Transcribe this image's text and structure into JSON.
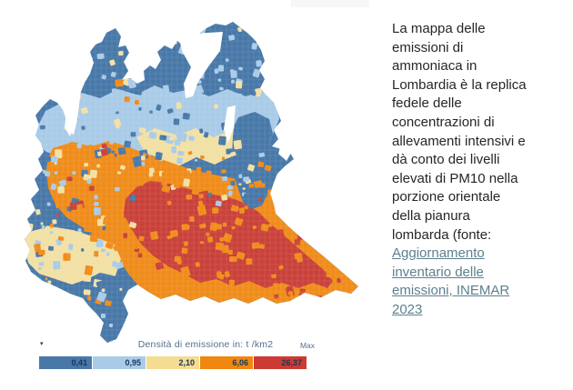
{
  "legend": {
    "title": "Densità di emissione in: t /km2",
    "max_label": "Max",
    "marker": "▾",
    "classes": [
      {
        "value": "0,41",
        "color": "#4878a8"
      },
      {
        "value": "0,95",
        "color": "#a9cbe8"
      },
      {
        "value": "2,10",
        "color": "#f4dc92"
      },
      {
        "value": "6,06",
        "color": "#f0870f"
      },
      {
        "value": "26,37",
        "color": "#cb3b33"
      }
    ]
  },
  "caption": {
    "text_lines": [
      "La mappa delle",
      "emissioni di",
      "ammoniaca in",
      "Lombardia è la replica",
      "fedele delle",
      "concentrazioni di",
      "allevamenti intensivi e",
      "dà conto dei livelli",
      "elevati di PM10 nella",
      "porzione orientale",
      "della pianura",
      "lombarda (fonte:"
    ],
    "link_lines": [
      "Aggiornamento",
      "inventario delle",
      "emissioni, INEMAR",
      "2023"
    ]
  },
  "map_colors": {
    "dark_blue": "#4878a8",
    "light_blue": "#a9cbe8",
    "cream": "#f2e0a4",
    "orange": "#ef8c1a",
    "red": "#c9413a",
    "lake": "#ffffff"
  },
  "chart_data": {
    "type": "heatmap",
    "subtype": "choropleth-map",
    "region": "Lombardia",
    "legend_title": "Densità di emissione in: t /km2",
    "unit": "t/km2",
    "classes": [
      {
        "upper_bound": 0.41,
        "color": "#4878a8"
      },
      {
        "upper_bound": 0.95,
        "color": "#a9cbe8"
      },
      {
        "upper_bound": 2.1,
        "color": "#f4dc92"
      },
      {
        "upper_bound": 6.06,
        "color": "#f0870f"
      },
      {
        "upper_bound": 26.37,
        "color": "#cb3b33",
        "label": "Max"
      }
    ],
    "pattern_summary": "Alpine north mostly lowest classes (blue); Po-plain centre-south and eastern plain (Brescia-Cremona-Mantova) highest classes (orange/red); south-west (Pavia) mid classes (cream/orange); Oltrepò southern tail lowest class (blue)"
  }
}
